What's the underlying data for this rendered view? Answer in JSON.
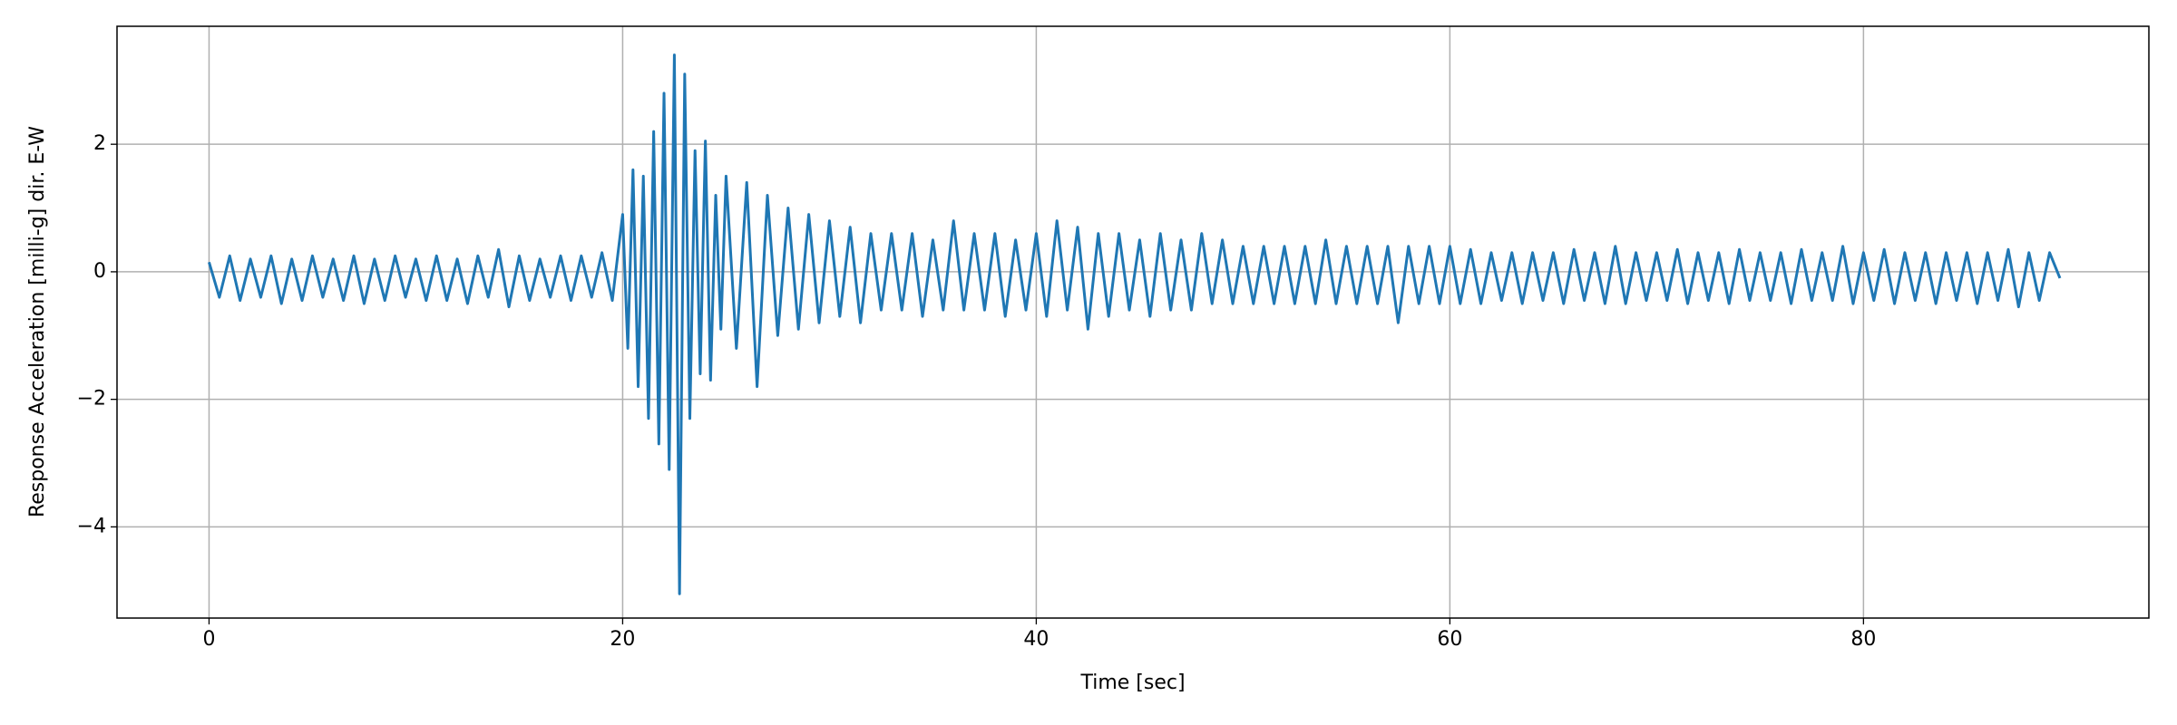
{
  "chart_data": {
    "type": "line",
    "xlabel": "Time [sec]",
    "ylabel": "Response Acceleration [milli-g] dir. E-W",
    "x": [
      0,
      0.5,
      1,
      1.5,
      2,
      2.5,
      3,
      3.5,
      4,
      4.5,
      5,
      5.5,
      6,
      6.5,
      7,
      7.5,
      8,
      8.5,
      9,
      9.5,
      10,
      10.5,
      11,
      11.5,
      12,
      12.5,
      13,
      13.5,
      14,
      14.5,
      15,
      15.5,
      16,
      16.5,
      17,
      17.5,
      18,
      18.5,
      19,
      19.5,
      20,
      20.25,
      20.5,
      20.75,
      21,
      21.25,
      21.5,
      21.75,
      22,
      22.25,
      22.5,
      22.75,
      23,
      23.25,
      23.5,
      23.75,
      24,
      24.25,
      24.5,
      24.75,
      25,
      25.5,
      26,
      26.5,
      27,
      27.5,
      28,
      28.5,
      29,
      29.5,
      30,
      30.5,
      31,
      31.5,
      32,
      32.5,
      33,
      33.5,
      34,
      34.5,
      35,
      35.5,
      36,
      36.5,
      37,
      37.5,
      38,
      38.5,
      39,
      39.5,
      40,
      40.5,
      41,
      41.5,
      42,
      42.5,
      43,
      43.5,
      44,
      44.5,
      45,
      45.5,
      46,
      46.5,
      47,
      47.5,
      48,
      48.5,
      49,
      49.5,
      50,
      50.5,
      51,
      51.5,
      52,
      52.5,
      53,
      53.5,
      54,
      54.5,
      55,
      55.5,
      56,
      56.5,
      57,
      57.5,
      58,
      58.5,
      59,
      59.5,
      60,
      60.5,
      61,
      61.5,
      62,
      62.5,
      63,
      63.5,
      64,
      64.5,
      65,
      65.5,
      66,
      66.5,
      67,
      67.5,
      68,
      68.5,
      69,
      69.5,
      70,
      70.5,
      71,
      71.5,
      72,
      72.5,
      73,
      73.5,
      74,
      74.5,
      75,
      75.5,
      76,
      76.5,
      77,
      77.5,
      78,
      78.5,
      79,
      79.5,
      80,
      80.5,
      81,
      81.5,
      82,
      82.5,
      83,
      83.5,
      84,
      84.5,
      85,
      85.5,
      86,
      86.5,
      87,
      87.5,
      88,
      88.5,
      89,
      89.5
    ],
    "series": [
      {
        "color": "#1f77b4",
        "values": [
          0.15,
          -0.4,
          0.25,
          -0.45,
          0.2,
          -0.4,
          0.25,
          -0.5,
          0.2,
          -0.45,
          0.25,
          -0.4,
          0.2,
          -0.45,
          0.25,
          -0.5,
          0.2,
          -0.45,
          0.25,
          -0.4,
          0.2,
          -0.45,
          0.25,
          -0.45,
          0.2,
          -0.5,
          0.25,
          -0.4,
          0.35,
          -0.55,
          0.25,
          -0.45,
          0.2,
          -0.4,
          0.25,
          -0.45,
          0.25,
          -0.4,
          0.3,
          -0.45,
          0.9,
          -1.2,
          1.6,
          -1.8,
          1.5,
          -2.3,
          2.2,
          -2.7,
          2.8,
          -3.1,
          3.4,
          -5.05,
          3.1,
          -2.3,
          1.9,
          -1.6,
          2.05,
          -1.7,
          1.2,
          -0.9,
          1.5,
          -1.2,
          1.4,
          -1.8,
          1.2,
          -1.0,
          1.0,
          -0.9,
          0.9,
          -0.8,
          0.8,
          -0.7,
          0.7,
          -0.8,
          0.6,
          -0.6,
          0.6,
          -0.6,
          0.6,
          -0.7,
          0.5,
          -0.6,
          0.8,
          -0.6,
          0.6,
          -0.6,
          0.6,
          -0.7,
          0.5,
          -0.6,
          0.6,
          -0.7,
          0.8,
          -0.6,
          0.7,
          -0.9,
          0.6,
          -0.7,
          0.6,
          -0.6,
          0.5,
          -0.7,
          0.6,
          -0.6,
          0.5,
          -0.6,
          0.6,
          -0.5,
          0.5,
          -0.5,
          0.4,
          -0.5,
          0.4,
          -0.5,
          0.4,
          -0.5,
          0.4,
          -0.5,
          0.5,
          -0.5,
          0.4,
          -0.5,
          0.4,
          -0.5,
          0.4,
          -0.8,
          0.4,
          -0.5,
          0.4,
          -0.5,
          0.4,
          -0.5,
          0.35,
          -0.5,
          0.3,
          -0.45,
          0.3,
          -0.5,
          0.3,
          -0.45,
          0.3,
          -0.5,
          0.35,
          -0.45,
          0.3,
          -0.5,
          0.4,
          -0.5,
          0.3,
          -0.45,
          0.3,
          -0.45,
          0.35,
          -0.5,
          0.3,
          -0.45,
          0.3,
          -0.5,
          0.35,
          -0.45,
          0.3,
          -0.45,
          0.3,
          -0.5,
          0.35,
          -0.45,
          0.3,
          -0.45,
          0.4,
          -0.5,
          0.3,
          -0.45,
          0.35,
          -0.5,
          0.3,
          -0.45,
          0.3,
          -0.5,
          0.3,
          -0.45,
          0.3,
          -0.5,
          0.3,
          -0.45,
          0.35,
          -0.55,
          0.3,
          -0.45,
          0.3,
          -0.1
        ]
      }
    ],
    "xlim": [
      -4.45,
      93.8
    ],
    "ylim": [
      -5.43,
      3.85
    ],
    "xticks": [
      0,
      20,
      40,
      60,
      80
    ],
    "yticks": [
      {
        "value": -4,
        "label": "−4"
      },
      {
        "value": -2,
        "label": "−2"
      },
      0,
      2
    ],
    "grid": true
  }
}
